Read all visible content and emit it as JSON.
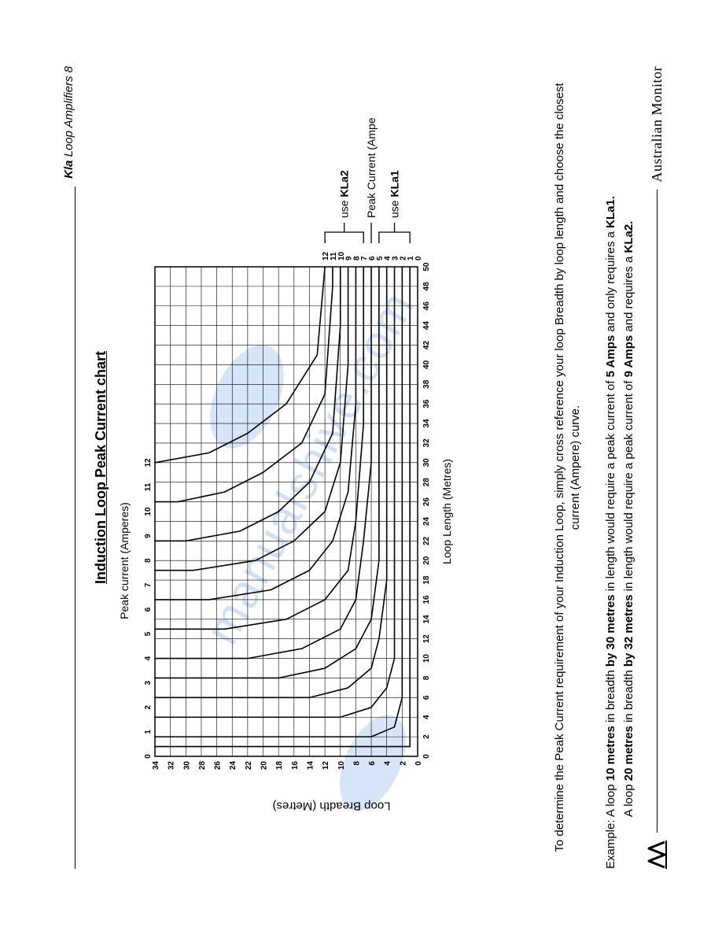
{
  "header": {
    "prefix": "Kla",
    "text": " Loop Amplifiers 8"
  },
  "title": "Induction Loop Peak Current chart",
  "watermark": "manualshive.com",
  "chart": {
    "type": "line",
    "top_axis_label": "Peak current (Amperes)",
    "left_axis_label": "Loop Breadth (Metres)",
    "bottom_axis_label": "Loop Length (Metres)",
    "right_axis_label": "Peak Current (Amperes)",
    "x_ticks": [
      0,
      2,
      4,
      6,
      8,
      10,
      12,
      14,
      16,
      18,
      20,
      22,
      24,
      26,
      28,
      30,
      32,
      34,
      36,
      38,
      40,
      42,
      44,
      46,
      48,
      50
    ],
    "y_ticks": [
      0,
      2,
      4,
      6,
      8,
      10,
      12,
      14,
      16,
      18,
      20,
      22,
      24,
      26,
      28,
      30,
      32,
      34
    ],
    "top_ticks": [
      0,
      1,
      2,
      3,
      4,
      5,
      6,
      7,
      8,
      9,
      10,
      11,
      12
    ],
    "right_ticks": [
      0,
      1,
      2,
      3,
      4,
      5,
      6,
      7,
      8,
      9,
      10,
      11,
      12
    ],
    "xlim": [
      0,
      50
    ],
    "ylim": [
      0,
      34
    ],
    "grid_color": "#000000",
    "line_color": "#000000",
    "background": "#ffffff",
    "bracket_upper_label": "use KLa2",
    "bracket_lower_label": "use KLa1",
    "curves": [
      {
        "a": 1,
        "pts": [
          [
            1,
            34
          ],
          [
            1,
            1
          ],
          [
            50,
            1
          ]
        ]
      },
      {
        "a": 2,
        "pts": [
          [
            2,
            34
          ],
          [
            2,
            6
          ],
          [
            3,
            3
          ],
          [
            6,
            2
          ],
          [
            50,
            2
          ]
        ]
      },
      {
        "a": 3,
        "pts": [
          [
            4,
            34
          ],
          [
            4,
            10
          ],
          [
            5,
            6
          ],
          [
            7,
            4
          ],
          [
            10,
            3
          ],
          [
            50,
            3
          ]
        ]
      },
      {
        "a": 4,
        "pts": [
          [
            6,
            34
          ],
          [
            6,
            14
          ],
          [
            7,
            9
          ],
          [
            9,
            6
          ],
          [
            12,
            5
          ],
          [
            18,
            4
          ],
          [
            50,
            4
          ]
        ]
      },
      {
        "a": 5,
        "pts": [
          [
            8,
            34
          ],
          [
            8,
            18
          ],
          [
            9,
            12
          ],
          [
            11,
            8
          ],
          [
            14,
            6
          ],
          [
            20,
            5
          ],
          [
            50,
            5
          ]
        ]
      },
      {
        "a": 6,
        "pts": [
          [
            10,
            34
          ],
          [
            10,
            22
          ],
          [
            11,
            15
          ],
          [
            13,
            10
          ],
          [
            16,
            8
          ],
          [
            22,
            7
          ],
          [
            30,
            6
          ],
          [
            50,
            6
          ]
        ]
      },
      {
        "a": 7,
        "pts": [
          [
            13,
            34
          ],
          [
            13,
            25
          ],
          [
            14,
            17
          ],
          [
            16,
            12
          ],
          [
            19,
            9
          ],
          [
            24,
            8
          ],
          [
            34,
            7
          ],
          [
            50,
            7
          ]
        ]
      },
      {
        "a": 8,
        "pts": [
          [
            16,
            34
          ],
          [
            16,
            27
          ],
          [
            17,
            19
          ],
          [
            19,
            14
          ],
          [
            22,
            11
          ],
          [
            27,
            9
          ],
          [
            36,
            8
          ],
          [
            50,
            8
          ]
        ]
      },
      {
        "a": 9,
        "pts": [
          [
            19,
            34
          ],
          [
            19,
            29
          ],
          [
            20,
            21
          ],
          [
            22,
            16
          ],
          [
            25,
            12
          ],
          [
            30,
            10
          ],
          [
            40,
            9
          ],
          [
            50,
            9
          ]
        ]
      },
      {
        "a": 10,
        "pts": [
          [
            22,
            34
          ],
          [
            22,
            30
          ],
          [
            23,
            23
          ],
          [
            25,
            18
          ],
          [
            28,
            14
          ],
          [
            33,
            11
          ],
          [
            44,
            10
          ],
          [
            50,
            10
          ]
        ]
      },
      {
        "a": 11,
        "pts": [
          [
            26,
            34
          ],
          [
            26,
            31
          ],
          [
            27,
            25
          ],
          [
            29,
            20
          ],
          [
            32,
            15
          ],
          [
            37,
            12
          ],
          [
            48,
            11
          ],
          [
            50,
            11
          ]
        ]
      },
      {
        "a": 12,
        "pts": [
          [
            30,
            34
          ],
          [
            31,
            27
          ],
          [
            33,
            22
          ],
          [
            36,
            17
          ],
          [
            41,
            13
          ],
          [
            50,
            12
          ]
        ]
      }
    ]
  },
  "instruction_line1": "To determine the Peak Current requirement of your Induction Loop, simply cross reference your loop Breadth by loop length and choose the closest",
  "instruction_line2": "current (Ampere) curve.",
  "example": {
    "lead": "Example: ",
    "l1a": "A loop ",
    "l1b": "10 metres",
    "l1c": " in breadth ",
    "l1d": "by 30 metres",
    "l1e": " in length would require a peak current of ",
    "l1f": "5 Amps",
    "l1g": " and only requires a ",
    "l1h": "KLa1.",
    "l2a": "A loop ",
    "l2b": "20 metres",
    "l2c": " in breadth ",
    "l2d": "by 32 metres",
    "l2e": " in length would require a peak current of ",
    "l2f": "9 Amps",
    "l2g": " and requires a ",
    "l2h": "KLa2."
  },
  "footer": {
    "brand": "Australian Monitor"
  }
}
